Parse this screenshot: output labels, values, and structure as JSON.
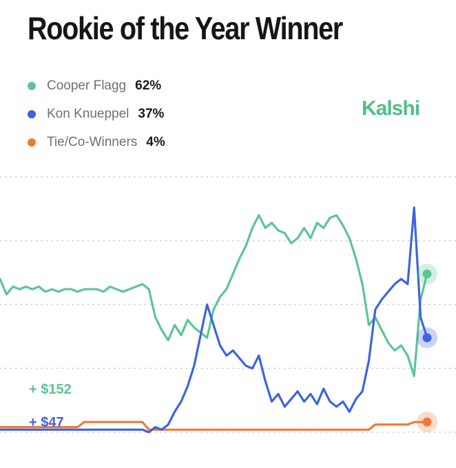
{
  "header": {
    "title": "Rookie of the Year Winner",
    "brand": "Kalshi"
  },
  "legend": [
    {
      "name": "Cooper Flagg",
      "value": "62%",
      "color": "#5cc594"
    },
    {
      "name": "Kon Knueppel",
      "value": "37%",
      "color": "#3d63e0"
    },
    {
      "name": "Tie/Co-Winners",
      "value": "4%",
      "color": "#ef7a35"
    }
  ],
  "chart_data": {
    "type": "line",
    "grid": true,
    "legend_position": "top-left",
    "ylim": [
      0,
      100
    ],
    "x": [
      0,
      1,
      2,
      3,
      4,
      5,
      6,
      7,
      8,
      9,
      10,
      11,
      12,
      13,
      14,
      15,
      16,
      17,
      18,
      19,
      20,
      21,
      22,
      23,
      24,
      25,
      26,
      27,
      28,
      29,
      30,
      31,
      32,
      33,
      34,
      35,
      36,
      37,
      38,
      39,
      40,
      41,
      42,
      43,
      44,
      45,
      46,
      47,
      48,
      49,
      50,
      51,
      52,
      53,
      54,
      55,
      56,
      57,
      58,
      59,
      60,
      61,
      62,
      63,
      64,
      65,
      66
    ],
    "annotations": [
      {
        "label": "+ $152",
        "color": "#5cc594",
        "x": 10,
        "y": 17
      },
      {
        "label": "+ $47",
        "color": "#3d63e0",
        "x": 10,
        "y": 4
      }
    ],
    "series": [
      {
        "name": "Cooper Flagg",
        "color": "#5cc594",
        "values": [
          60,
          54,
          57,
          56,
          57,
          56,
          57,
          55,
          56,
          55,
          56,
          56,
          55,
          56,
          56,
          56,
          55,
          57,
          56,
          55,
          56,
          57,
          58,
          56,
          45,
          40,
          36,
          42,
          38,
          44,
          41,
          39,
          37,
          48,
          53,
          56,
          62,
          68,
          73,
          80,
          85,
          80,
          82,
          79,
          78,
          74,
          76,
          80,
          76,
          82,
          80,
          84,
          85,
          81,
          76,
          68,
          58,
          42,
          45,
          40,
          35,
          32,
          34,
          30,
          22,
          52,
          62
        ]
      },
      {
        "name": "Kon Knueppel",
        "color": "#3d63e0",
        "values": [
          1,
          1,
          1,
          1,
          1,
          1,
          1,
          1,
          1,
          1,
          1,
          1,
          1,
          1,
          1,
          1,
          1,
          1,
          1,
          1,
          1,
          1,
          1,
          0,
          2,
          1,
          3,
          8,
          12,
          18,
          26,
          38,
          50,
          42,
          34,
          30,
          32,
          29,
          26,
          25,
          30,
          20,
          12,
          15,
          10,
          13,
          16,
          12,
          15,
          11,
          17,
          12,
          10,
          12,
          8,
          13,
          16,
          28,
          48,
          52,
          55,
          58,
          60,
          58,
          88,
          45,
          37
        ]
      },
      {
        "name": "Tie/Co-Winners",
        "color": "#ef7a35",
        "values": [
          2,
          2,
          2,
          2,
          2,
          2,
          2,
          2,
          2,
          2,
          2,
          2,
          2,
          4,
          4,
          4,
          4,
          4,
          4,
          4,
          4,
          4,
          4,
          1,
          1,
          1,
          1,
          1,
          1,
          1,
          1,
          1,
          1,
          1,
          1,
          1,
          1,
          1,
          1,
          1,
          1,
          1,
          1,
          1,
          1,
          1,
          1,
          1,
          1,
          1,
          1,
          1,
          1,
          1,
          1,
          1,
          1,
          1,
          3,
          3,
          3,
          3,
          3,
          3,
          4,
          4,
          4
        ]
      }
    ]
  }
}
